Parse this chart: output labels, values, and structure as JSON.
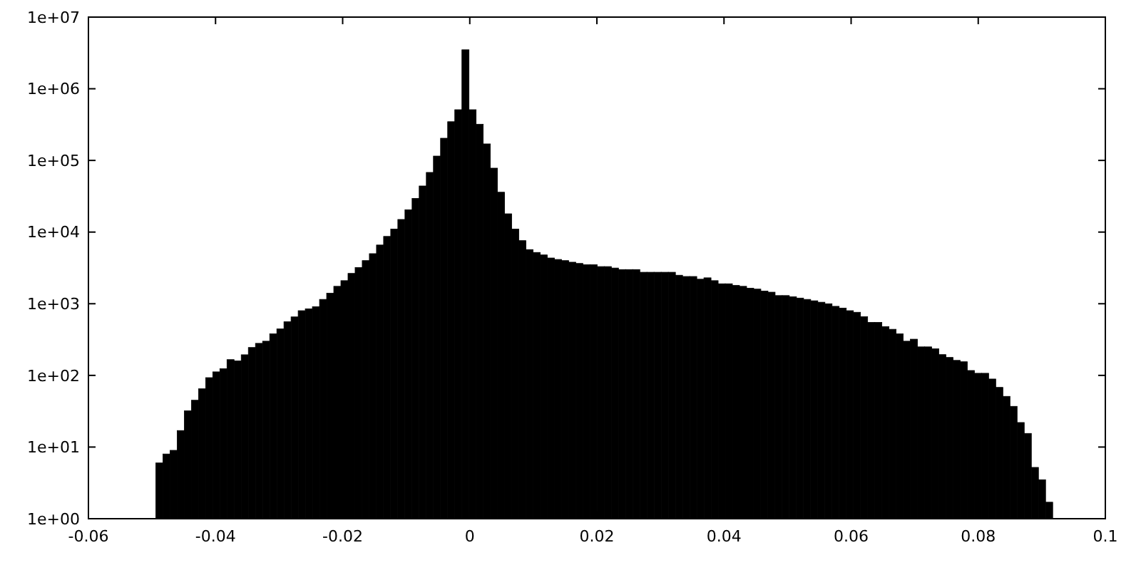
{
  "chart_data": {
    "type": "histogram",
    "log": "y",
    "grid": false,
    "color": "#000000",
    "bins": [
      -0.0494,
      -0.04828,
      -0.04716,
      -0.04604,
      -0.04492,
      -0.0438,
      -0.04268,
      -0.04156,
      -0.04044,
      -0.03932,
      -0.0382,
      -0.03708,
      -0.03596,
      -0.03484,
      -0.03372,
      -0.0326,
      -0.03148,
      -0.03036,
      -0.02924,
      -0.02812,
      -0.027,
      -0.02588,
      -0.02476,
      -0.02364,
      -0.02252,
      -0.0214,
      -0.02028,
      -0.01916,
      -0.01804,
      -0.01692,
      -0.0158,
      -0.01468,
      -0.01356,
      -0.01244,
      -0.01132,
      -0.0102,
      -0.00908,
      -0.00796,
      -0.00684,
      -0.00572,
      -0.0046,
      -0.00348,
      -0.00236,
      -0.00124,
      -0.00012,
      0.001,
      0.00212,
      0.00324,
      0.00436,
      0.00548,
      0.0066,
      0.00772,
      0.00884,
      0.00996,
      0.01108,
      0.0122,
      0.01332,
      0.01444,
      0.01556,
      0.01668,
      0.0178,
      0.01892,
      0.02004,
      0.02116,
      0.02228,
      0.0234,
      0.02452,
      0.02564,
      0.02676,
      0.02788,
      0.029,
      0.03012,
      0.03124,
      0.03236,
      0.03348,
      0.0346,
      0.03572,
      0.03684,
      0.03796,
      0.03908,
      0.0402,
      0.04132,
      0.04244,
      0.04356,
      0.04468,
      0.0458,
      0.04692,
      0.04804,
      0.04916,
      0.05028,
      0.0514,
      0.05252,
      0.05364,
      0.05476,
      0.05588,
      0.057,
      0.05812,
      0.05924,
      0.06036,
      0.06148,
      0.0626,
      0.06372,
      0.06484,
      0.06596,
      0.06708,
      0.0682,
      0.06932,
      0.07044,
      0.07156,
      0.07268,
      0.0738,
      0.07492,
      0.07604,
      0.07716,
      0.07828,
      0.0794,
      0.08052,
      0.08164,
      0.08276,
      0.08388,
      0.085,
      0.08612,
      0.08724,
      0.08836,
      0.08948,
      0.0906,
      0.09172
    ],
    "values": [
      6,
      8,
      9,
      17,
      32,
      45,
      65,
      93,
      112,
      124,
      166,
      159,
      194,
      245,
      280,
      300,
      380,
      445,
      560,
      655,
      800,
      850,
      910,
      1150,
      1400,
      1750,
      2100,
      2650,
      3200,
      4000,
      5000,
      6600,
      8700,
      11000,
      15000,
      20500,
      29500,
      44000,
      68000,
      115000,
      204000,
      347000,
      510000,
      3500000,
      510000,
      320000,
      170000,
      78000,
      36000,
      18000,
      11000,
      7600,
      5700,
      5200,
      4800,
      4350,
      4150,
      4000,
      3800,
      3650,
      3500,
      3500,
      3300,
      3300,
      3150,
      3000,
      3000,
      3000,
      2750,
      2750,
      2750,
      2750,
      2750,
      2500,
      2400,
      2400,
      2200,
      2300,
      2100,
      1900,
      1900,
      1800,
      1750,
      1650,
      1600,
      1500,
      1450,
      1300,
      1300,
      1250,
      1200,
      1150,
      1100,
      1050,
      1000,
      920,
      870,
      800,
      760,
      660,
      550,
      550,
      480,
      440,
      380,
      300,
      320,
      250,
      250,
      235,
      195,
      178,
      162,
      155,
      117,
      107,
      107,
      89,
      68,
      51,
      37,
      22,
      15.5,
      5.2,
      3.5,
      1.7
    ],
    "xlim": [
      -0.06,
      0.1
    ],
    "xticks": [
      -0.06,
      -0.04,
      -0.02,
      0,
      0.02,
      0.04,
      0.06,
      0.08,
      0.1
    ],
    "ylim": [
      1,
      10000000
    ],
    "yticks": [
      {
        "value": 1,
        "label": "1e+00"
      },
      {
        "value": 10,
        "label": "1e+01"
      },
      {
        "value": 100,
        "label": "1e+02"
      },
      {
        "value": 1000,
        "label": "1e+03"
      },
      {
        "value": 10000,
        "label": "1e+04"
      },
      {
        "value": 100000,
        "label": "1e+05"
      },
      {
        "value": 1000000,
        "label": "1e+06"
      },
      {
        "value": 10000000,
        "label": "1e+07"
      }
    ]
  }
}
